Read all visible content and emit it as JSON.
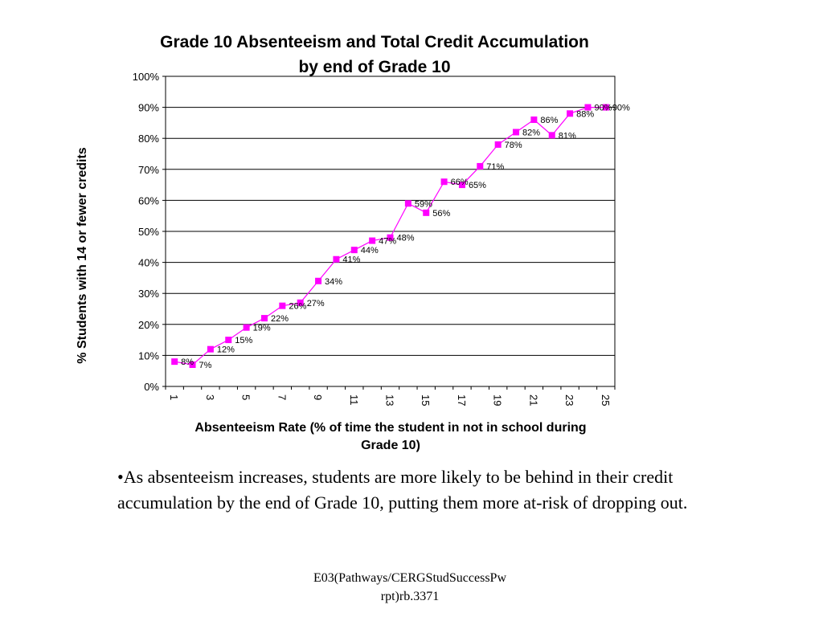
{
  "chart_data": {
    "type": "line",
    "title_lines": [
      "Grade 10 Absenteeism and Total Credit Accumulation",
      "by end of Grade 10"
    ],
    "xlabel_lines": [
      "Absenteeism Rate (% of time the student in not in school during",
      "Grade 10)"
    ],
    "ylabel": "% Students with 14 or fewer credits",
    "x": [
      1,
      2,
      3,
      4,
      5,
      6,
      7,
      8,
      9,
      10,
      11,
      12,
      13,
      14,
      15,
      16,
      17,
      18,
      19,
      20,
      21,
      22,
      23,
      24,
      25
    ],
    "x_tick_labels": [
      "1",
      "3",
      "5",
      "7",
      "9",
      "11",
      "13",
      "15",
      "17",
      "19",
      "21",
      "23",
      "25"
    ],
    "y_tick_labels": [
      "0%",
      "10%",
      "20%",
      "30%",
      "40%",
      "50%",
      "60%",
      "70%",
      "80%",
      "90%",
      "100%"
    ],
    "ylim": [
      0,
      100
    ],
    "grid": true,
    "legend": "none",
    "series": [
      {
        "values": [
          8,
          7,
          12,
          15,
          19,
          22,
          26,
          27,
          34,
          41,
          44,
          47,
          48,
          59,
          56,
          66,
          65,
          71,
          78,
          82,
          86,
          81,
          88,
          90,
          90
        ],
        "labels": [
          "8%",
          "7%",
          "12%",
          "15%",
          "19%",
          "22%",
          "26%",
          "27%",
          "34%",
          "41%",
          "44%",
          "47%",
          "48%",
          "59%",
          "56%",
          "66%",
          "65%",
          "71%",
          "78%",
          "82%",
          "86%",
          "81%",
          "88%",
          "90%",
          "90%"
        ],
        "color": "#FF00FF"
      }
    ]
  },
  "text": {
    "bullet": "•As absenteeism increases, students are more likely to be behind in their credit accumulation by the end of Grade 10, putting them more at-risk of dropping out.",
    "footer_line1": "E03(Pathways/CERGStudSuccessPw",
    "footer_line2": "rpt)rb.3371"
  },
  "colors": {
    "series": "#FF00FF",
    "gridline": "#000000"
  }
}
